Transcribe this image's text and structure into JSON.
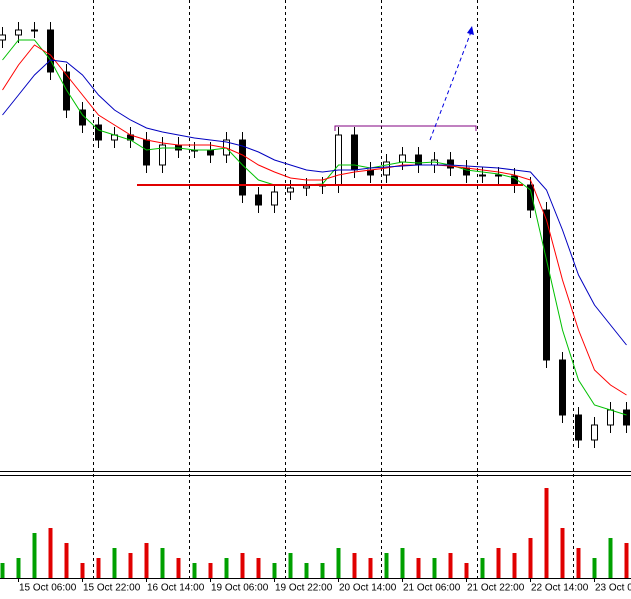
{
  "chart_data": {
    "type": "candlestick",
    "categories": [
      null,
      "15 Oct 06:00",
      null,
      null,
      null,
      "15 Oct 22:00",
      null,
      null,
      null,
      "16 Oct 14:00",
      null,
      null,
      null,
      "19 Oct 06:00",
      null,
      null,
      null,
      "19 Oct 22:00",
      null,
      null,
      null,
      "20 Oct 14:00",
      null,
      null,
      null,
      "21 Oct 06:00",
      null,
      null,
      null,
      "21 Oct 22:00",
      null,
      null,
      null,
      "22 Oct 14:00",
      null,
      null,
      null,
      "23 Oct 0",
      null,
      null
    ],
    "open": [
      430,
      435,
      440,
      440,
      398,
      360,
      345,
      330,
      335,
      330,
      305,
      325,
      320,
      320,
      315,
      330,
      275,
      265,
      278,
      282,
      284,
      285,
      335,
      300,
      295,
      308,
      315,
      305,
      310,
      302,
      295,
      295,
      294,
      285,
      260,
      110,
      55,
      30,
      45,
      60
    ],
    "high": [
      443,
      448,
      448,
      448,
      406,
      368,
      353,
      343,
      343,
      338,
      333,
      333,
      328,
      328,
      338,
      338,
      283,
      286,
      290,
      292,
      293,
      343,
      343,
      308,
      316,
      323,
      323,
      318,
      318,
      310,
      303,
      303,
      302,
      293,
      268,
      118,
      63,
      53,
      68,
      68
    ],
    "low": [
      422,
      427,
      432,
      390,
      352,
      337,
      322,
      322,
      322,
      297,
      297,
      312,
      312,
      307,
      307,
      267,
      257,
      257,
      270,
      274,
      276,
      277,
      292,
      287,
      287,
      300,
      297,
      297,
      294,
      287,
      287,
      286,
      277,
      252,
      102,
      47,
      22,
      22,
      37,
      37
    ],
    "close": [
      435,
      440,
      440,
      398,
      360,
      345,
      330,
      335,
      330,
      305,
      325,
      320,
      320,
      315,
      330,
      275,
      265,
      278,
      282,
      284,
      285,
      335,
      300,
      295,
      308,
      315,
      305,
      310,
      302,
      295,
      295,
      294,
      285,
      260,
      110,
      55,
      30,
      45,
      60,
      45
    ],
    "up_color": "#ffffff",
    "down_color": "#000000",
    "ylim": [
      0,
      470
    ],
    "moving_averages": [
      {
        "color": "#00c000",
        "values": [
          410,
          430,
          430,
          410,
          380,
          355,
          340,
          335,
          330,
          320,
          322,
          322,
          320,
          320,
          322,
          305,
          290,
          285,
          285,
          285,
          286,
          305,
          305,
          302,
          305,
          308,
          307,
          308,
          305,
          300,
          298,
          296,
          292,
          280,
          210,
          140,
          90,
          65,
          60,
          55
        ]
      },
      {
        "color": "#ff0000",
        "values": [
          380,
          405,
          425,
          415,
          395,
          375,
          355,
          345,
          335,
          330,
          327,
          325,
          325,
          325,
          322,
          315,
          305,
          298,
          292,
          290,
          290,
          295,
          298,
          300,
          302,
          305,
          305,
          305,
          304,
          302,
          300,
          298,
          295,
          290,
          250,
          190,
          140,
          100,
          85,
          75
        ]
      },
      {
        "color": "#0000c0",
        "values": [
          355,
          375,
          395,
          410,
          408,
          395,
          375,
          360,
          350,
          342,
          338,
          335,
          332,
          330,
          328,
          324,
          318,
          310,
          305,
          300,
          298,
          300,
          300,
          302,
          303,
          304,
          305,
          305,
          305,
          304,
          303,
          302,
          300,
          298,
          280,
          240,
          195,
          165,
          145,
          125
        ]
      }
    ],
    "volume": {
      "ylim": [
        0,
        100
      ],
      "up_color": "#00a000",
      "down_color": "#e00000",
      "values": [
        15,
        20,
        45,
        50,
        35,
        15,
        20,
        30,
        25,
        35,
        30,
        20,
        15,
        15,
        20,
        25,
        20,
        15,
        25,
        15,
        15,
        30,
        25,
        20,
        25,
        30,
        20,
        20,
        25,
        15,
        20,
        30,
        25,
        40,
        90,
        50,
        30,
        20,
        40,
        35
      ]
    }
  }
}
